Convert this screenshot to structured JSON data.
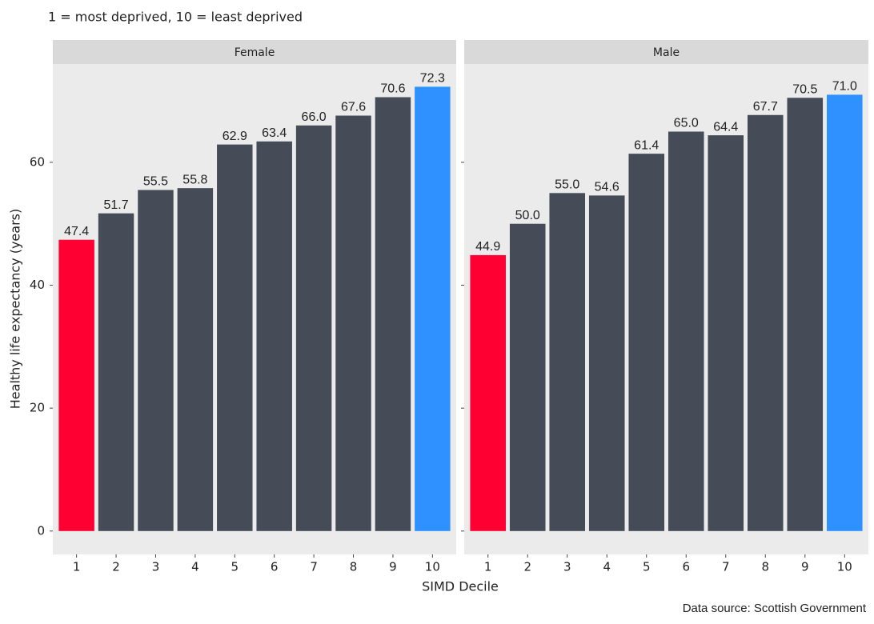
{
  "shared": {
    "subtitle": "1 = most deprived, 10 = least deprived",
    "y_label": "Healthy life expectancy (years)",
    "x_label": "SIMD Decile",
    "caption": "Data source: Scottish Government"
  },
  "chart_data": [
    {
      "type": "bar",
      "title": "Female",
      "categories": [
        "1",
        "2",
        "3",
        "4",
        "5",
        "6",
        "7",
        "8",
        "9",
        "10"
      ],
      "values": [
        47.4,
        51.7,
        55.5,
        55.8,
        62.9,
        63.4,
        66.0,
        67.6,
        70.6,
        72.3
      ],
      "value_labels": [
        "47.4",
        "51.7",
        "55.5",
        "55.8",
        "62.9",
        "63.4",
        "66.0",
        "67.6",
        "70.6",
        "72.3"
      ],
      "colors": [
        "#ff0033",
        "#454b57",
        "#454b57",
        "#454b57",
        "#454b57",
        "#454b57",
        "#454b57",
        "#454b57",
        "#454b57",
        "#2e91ff"
      ],
      "ylim": [
        -3.8,
        76
      ],
      "yticks": [
        0,
        20,
        40,
        60
      ],
      "grid": false
    },
    {
      "type": "bar",
      "title": "Male",
      "categories": [
        "1",
        "2",
        "3",
        "4",
        "5",
        "6",
        "7",
        "8",
        "9",
        "10"
      ],
      "values": [
        44.9,
        50.0,
        55.0,
        54.6,
        61.4,
        65.0,
        64.4,
        67.7,
        70.5,
        71.0
      ],
      "value_labels": [
        "44.9",
        "50.0",
        "55.0",
        "54.6",
        "61.4",
        "65.0",
        "64.4",
        "67.7",
        "70.5",
        "71.0"
      ],
      "colors": [
        "#ff0033",
        "#454b57",
        "#454b57",
        "#454b57",
        "#454b57",
        "#454b57",
        "#454b57",
        "#454b57",
        "#454b57",
        "#2e91ff"
      ],
      "ylim": [
        -3.8,
        76
      ],
      "yticks": [
        0,
        20,
        40,
        60
      ],
      "grid": false
    }
  ]
}
